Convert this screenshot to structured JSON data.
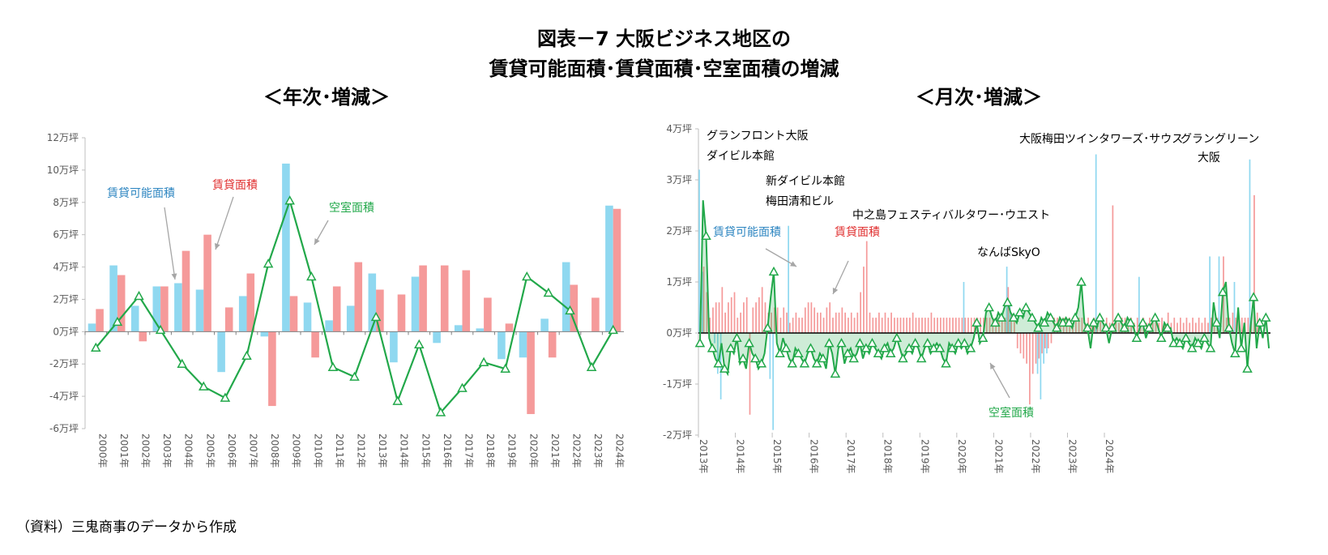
{
  "title_line1": "図表－7  大阪ビジネス地区の",
  "title_line2": "賃貸可能面積･賃貸面積･空室面積の増減",
  "source": "（資料）三鬼商事のデータから作成",
  "colors": {
    "available": "#8fd8f0",
    "leased": "#f59a9a",
    "vacant": "#22a84a"
  },
  "chart_data": [
    {
      "type": "bar",
      "subtitle": "＜年次･増減＞",
      "categories": [
        "2000年",
        "2001年",
        "2002年",
        "2003年",
        "2004年",
        "2005年",
        "2006年",
        "2007年",
        "2008年",
        "2009年",
        "2010年",
        "2011年",
        "2012年",
        "2013年",
        "2014年",
        "2015年",
        "2016年",
        "2017年",
        "2018年",
        "2019年",
        "2020年",
        "2021年",
        "2022年",
        "2023年",
        "2024年"
      ],
      "ylim": [
        -6,
        12
      ],
      "yticks": [
        -6,
        -4,
        -2,
        0,
        2,
        4,
        6,
        8,
        10,
        12
      ],
      "ytick_labels": [
        "-6万坪",
        "-4万坪",
        "-2万坪",
        "0万坪",
        "2万坪",
        "4万坪",
        "6万坪",
        "8万坪",
        "10万坪",
        "12万坪"
      ],
      "series": [
        {
          "name": "賃貸可能面積",
          "kind": "bar",
          "color": "#8fd8f0",
          "values": [
            0.5,
            4.1,
            1.6,
            2.8,
            3.0,
            2.6,
            -2.5,
            2.2,
            -0.3,
            10.4,
            1.8,
            0.7,
            1.6,
            3.6,
            -1.9,
            3.4,
            -0.7,
            0.4,
            0.2,
            -1.7,
            -1.6,
            0.8,
            4.3,
            0.0,
            7.8
          ]
        },
        {
          "name": "賃貸面積",
          "kind": "bar",
          "color": "#f59a9a",
          "values": [
            1.4,
            3.5,
            -0.6,
            2.8,
            5.0,
            6.0,
            1.5,
            3.6,
            -4.6,
            2.2,
            -1.6,
            2.8,
            4.3,
            2.6,
            2.3,
            4.1,
            4.1,
            3.8,
            2.1,
            0.5,
            -5.1,
            -1.6,
            2.9,
            2.1,
            7.6
          ]
        },
        {
          "name": "空室面積",
          "kind": "line",
          "color": "#22a84a",
          "values": [
            -1.0,
            0.6,
            2.2,
            0.1,
            -2.0,
            -3.4,
            -4.1,
            -1.5,
            4.2,
            8.1,
            3.4,
            -2.2,
            -2.8,
            0.9,
            -4.3,
            -0.8,
            -5.0,
            -3.5,
            -1.9,
            -2.3,
            3.4,
            2.4,
            1.3,
            -2.2,
            0.1
          ]
        }
      ],
      "annotations": [
        {
          "text": "賃貸可能面積",
          "color": "#2e86c1"
        },
        {
          "text": "賃貸面積",
          "color": "#e03030"
        },
        {
          "text": "空室面積",
          "color": "#22a84a"
        }
      ]
    },
    {
      "type": "bar",
      "subtitle": "＜月次･増減＞",
      "x_labels": [
        "2013年",
        "2014年",
        "2015年",
        "2016年",
        "2017年",
        "2018年",
        "2019年",
        "2020年",
        "2021年",
        "2022年",
        "2023年",
        "2024年"
      ],
      "ylim": [
        -2,
        4
      ],
      "yticks": [
        -2,
        -1,
        0,
        1,
        2,
        3,
        4
      ],
      "ytick_labels": [
        "-2万坪",
        "-1万坪",
        "0万坪",
        "1万坪",
        "2万坪",
        "3万坪",
        "4万坪"
      ],
      "series": [
        {
          "name": "賃貸可能面積",
          "kind": "bar",
          "color": "#8fd8f0",
          "values": [
            3.2,
            1.2,
            0,
            0,
            0,
            -0.2,
            -0.8,
            -1.3,
            0,
            0,
            0,
            0,
            0,
            0,
            0,
            0,
            0,
            0,
            0,
            0,
            0,
            0,
            0,
            -0.9,
            -1.9,
            0,
            0,
            0,
            0,
            2.1,
            0,
            0,
            0,
            0,
            0,
            0,
            0,
            0,
            0,
            0,
            0,
            0,
            0,
            0,
            0,
            0,
            0,
            0,
            0,
            0,
            0,
            0,
            0,
            0,
            0,
            0,
            0,
            0,
            0,
            0,
            0,
            0,
            0,
            0,
            0,
            0,
            0,
            0,
            0,
            0,
            0,
            0,
            0,
            0,
            0,
            0,
            0,
            0,
            0,
            0,
            0,
            0,
            0,
            0,
            0,
            0,
            1.0,
            0,
            0,
            0,
            0,
            0,
            0,
            0,
            0,
            0,
            0,
            0,
            0,
            0,
            1.3,
            0.6,
            0,
            0,
            0,
            0,
            0,
            0,
            0,
            0,
            -0.8,
            -1.3,
            -0.6,
            -0.4,
            0,
            0,
            0,
            0,
            0,
            0,
            0,
            0,
            0,
            0,
            0,
            0,
            0,
            0,
            0,
            3.5,
            0,
            0,
            0,
            0,
            0,
            0,
            0,
            0,
            0,
            0,
            0,
            0,
            0,
            1.1,
            0,
            0,
            0,
            0,
            0,
            0,
            0,
            0,
            0,
            0,
            0,
            0,
            0,
            0,
            0,
            0,
            0,
            0,
            0,
            0,
            0,
            0,
            1.5,
            0,
            0,
            1.5,
            0,
            0,
            0,
            0,
            1.0,
            0,
            0,
            0,
            0,
            3.4,
            0
          ]
        },
        {
          "name": "賃貸面積",
          "kind": "bar",
          "color": "#f59a9a",
          "values": [
            0.3,
            1.3,
            0.8,
            0.3,
            0.5,
            0.6,
            0.6,
            0.9,
            0.4,
            0.6,
            0.7,
            0.8,
            0.3,
            0.4,
            0.6,
            0.7,
            -1.6,
            0.5,
            0.6,
            0.7,
            0.9,
            0.6,
            0.4,
            0.4,
            0.5,
            0.5,
            0.3,
            0.5,
            0.4,
            0.2,
            0.3,
            0.4,
            0.3,
            0.3,
            0.5,
            0.6,
            0.6,
            0.5,
            0.4,
            0.4,
            0.3,
            0.5,
            0.6,
            0.3,
            0.4,
            0.4,
            0.5,
            0.4,
            0.3,
            0.4,
            0.3,
            0.4,
            0.8,
            1.3,
            1.8,
            0.4,
            0.3,
            0.3,
            0.4,
            0.3,
            0.4,
            0.3,
            0.4,
            0.3,
            0.3,
            0.3,
            0.3,
            0.3,
            0.3,
            0.4,
            0.3,
            0.3,
            0.3,
            0.3,
            0.3,
            0.4,
            0.3,
            0.3,
            0.3,
            0.3,
            0.3,
            0.3,
            0.3,
            0.3,
            0.3,
            0.3,
            0.3,
            0.3,
            0.3,
            0.3,
            0.3,
            0.3,
            0.3,
            0.3,
            0.3,
            0.3,
            0.3,
            0.3,
            0.3,
            0.3,
            0.9,
            0.4,
            0.3,
            -0.3,
            -0.4,
            -0.5,
            -0.6,
            -1.4,
            -0.8,
            -0.6,
            -0.5,
            -0.4,
            -0.3,
            -0.3,
            -0.2,
            0.3,
            0.3,
            0.3,
            0.3,
            0.3,
            0.3,
            0.2,
            0.3,
            0.3,
            0.3,
            0.2,
            0.3,
            0.2,
            0.3,
            0.2,
            0.3,
            0.2,
            0.3,
            0.2,
            2.5,
            0.3,
            0.2,
            0.3,
            0.3,
            0.2,
            0.3,
            0.2,
            0.3,
            0.2,
            0.3,
            0.2,
            0.3,
            0.2,
            0.3,
            0.2,
            0.3,
            0.2,
            0.4,
            0.2,
            0.3,
            0.2,
            0.3,
            0.2,
            0.3,
            0.2,
            0.3,
            0.2,
            0.3,
            0.2,
            0.3,
            0.2,
            0.3,
            0.2,
            0.3,
            0.2,
            1.5,
            0.3,
            0.3,
            0.4,
            0.3,
            0.3,
            0.3,
            0.3,
            0.3,
            0.3,
            2.7,
            0.4
          ]
        },
        {
          "name": "空室面積",
          "kind": "line",
          "color": "#22a84a",
          "values": [
            -0.2,
            2.6,
            1.9,
            -0.1,
            -0.3,
            -0.5,
            -0.6,
            -0.2,
            -0.7,
            -0.8,
            -0.3,
            -0.4,
            -0.1,
            -0.6,
            -0.5,
            -0.7,
            -0.2,
            -0.4,
            -0.5,
            -0.7,
            -0.6,
            -0.4,
            0.1,
            0.7,
            1.2,
            -0.2,
            -0.4,
            -0.1,
            -0.3,
            -0.5,
            -0.6,
            -0.3,
            -0.4,
            -0.5,
            -0.6,
            -0.4,
            -0.3,
            -0.5,
            -0.6,
            -0.4,
            -0.5,
            -0.7,
            -0.2,
            -0.4,
            -0.8,
            -0.3,
            -0.2,
            -0.6,
            -0.4,
            -0.3,
            -0.5,
            -0.4,
            -0.2,
            -0.5,
            -0.3,
            -0.4,
            -0.2,
            -0.3,
            -0.4,
            -0.5,
            -0.3,
            -0.2,
            -0.4,
            -0.3,
            -0.1,
            -0.3,
            -0.5,
            -0.4,
            -0.3,
            -0.4,
            -0.2,
            -0.3,
            -0.5,
            -0.3,
            -0.2,
            -0.4,
            -0.3,
            -0.2,
            -0.3,
            -0.5,
            -0.6,
            -0.2,
            -0.3,
            -0.4,
            -0.2,
            -0.3,
            -0.2,
            -0.4,
            -0.3,
            -0.1,
            0.2,
            -0.2,
            -0.1,
            0.4,
            0.5,
            0.3,
            0.2,
            0.4,
            0.3,
            0.5,
            0.6,
            0.4,
            0.3,
            0.2,
            0.4,
            0.3,
            0.5,
            0.4,
            0.3,
            0.2,
            0.1,
            0.3,
            0.2,
            0.4,
            0.3,
            0.2,
            0.1,
            0.3,
            0.2,
            0.3,
            0.2,
            0.1,
            0.3,
            0.5,
            1.0,
            0.2,
            0.1,
            -0.3,
            0.2,
            0.1,
            0.3,
            0.2,
            0.1,
            -0.2,
            0.1,
            0.2,
            0.3,
            0.2,
            0.1,
            0.3,
            0.2,
            0.1,
            -0.1,
            0.1,
            0.2,
            -0.1,
            0.1,
            0.2,
            0.3,
            0.1,
            -0.1,
            0.2,
            0.1,
            0.1,
            -0.2,
            -0.1,
            -0.2,
            -0.3,
            -0.1,
            -0.2,
            -0.3,
            -0.1,
            -0.2,
            -0.3,
            -0.1,
            -0.2,
            -0.3,
            0.6,
            0.2,
            -0.1,
            0.8,
            1.0,
            0.1,
            -0.2,
            -0.4,
            0.5,
            -0.3,
            0.2,
            -0.7,
            0.1,
            0.7,
            -0.3,
            0.2,
            -0.1,
            0.3,
            -0.3
          ]
        }
      ],
      "annotations": [
        {
          "text": "グランフロント大阪",
          "color": "#000000"
        },
        {
          "text": "ダイビル本館",
          "color": "#000000"
        },
        {
          "text": "新ダイビル本館",
          "color": "#000000"
        },
        {
          "text": "梅田清和ビル",
          "color": "#000000"
        },
        {
          "text": "中之島フェスティバルタワー･ウエスト",
          "color": "#000000"
        },
        {
          "text": "なんばSkyO",
          "color": "#000000"
        },
        {
          "text": "大阪梅田ツインタワーズ･サウス",
          "color": "#000000"
        },
        {
          "text": "グラングリーン",
          "color": "#000000"
        },
        {
          "text": "大阪",
          "color": "#000000"
        },
        {
          "text": "賃貸可能面積",
          "color": "#2e86c1"
        },
        {
          "text": "賃貸面積",
          "color": "#e03030"
        },
        {
          "text": "空室面積",
          "color": "#22a84a"
        }
      ]
    }
  ]
}
